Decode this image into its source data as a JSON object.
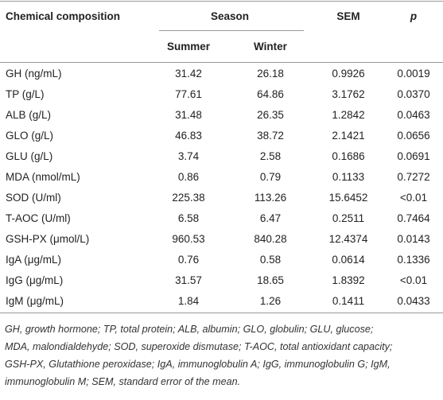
{
  "table": {
    "header": {
      "col0": "Chemical composition",
      "season": "Season",
      "sem": "SEM",
      "p": "p",
      "summer": "Summer",
      "winter": "Winter"
    },
    "rows": [
      [
        "GH (ng/mL)",
        "31.42",
        "26.18",
        "0.9926",
        "0.0019"
      ],
      [
        "TP (g/L)",
        "77.61",
        "64.86",
        "3.1762",
        "0.0370"
      ],
      [
        "ALB (g/L)",
        "31.48",
        "26.35",
        "1.2842",
        "0.0463"
      ],
      [
        "GLO (g/L)",
        "46.83",
        "38.72",
        "2.1421",
        "0.0656"
      ],
      [
        "GLU (g/L)",
        "3.74",
        "2.58",
        "0.1686",
        "0.0691"
      ],
      [
        "MDA (nmol/mL)",
        "0.86",
        "0.79",
        "0.1133",
        "0.7272"
      ],
      [
        "SOD (U/ml)",
        "225.38",
        "113.26",
        "15.6452",
        "<0.01"
      ],
      [
        "T-AOC (U/ml)",
        "6.58",
        "6.47",
        "0.2511",
        "0.7464"
      ],
      [
        "GSH-PX (μmol/L)",
        "960.53",
        "840.28",
        "12.4374",
        "0.0143"
      ],
      [
        "IgA (μg/mL)",
        "0.76",
        "0.58",
        "0.0614",
        "0.1336"
      ],
      [
        "IgG (μg/mL)",
        "31.57",
        "18.65",
        "1.8392",
        "<0.01"
      ],
      [
        "IgM (μg/mL)",
        "1.84",
        "1.26",
        "0.1411",
        "0.0433"
      ]
    ],
    "footnote": [
      "GH, growth hormone; TP, total protein; ALB, albumin; GLO, globulin; GLU, glucose;",
      "MDA, malondialdehyde; SOD, superoxide dismutase; T-AOC, total antioxidant capacity;",
      "GSH-PX, Glutathione peroxidase; IgA, immunoglobulin A; IgG, immunoglobulin G; IgM,",
      "immunoglobulin M; SEM, standard error of the mean."
    ]
  }
}
